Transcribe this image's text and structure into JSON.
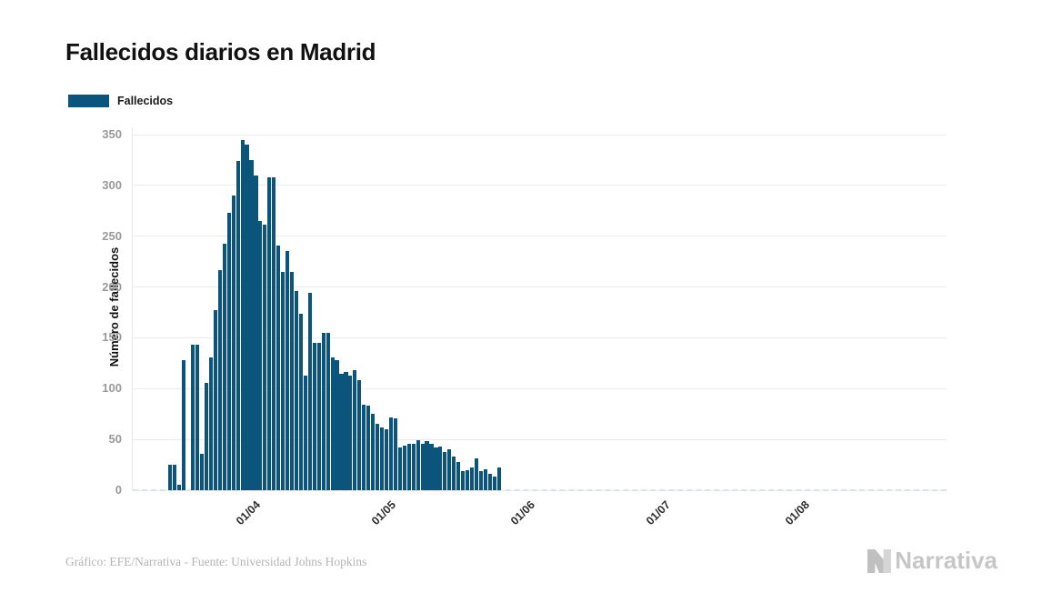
{
  "title": "Fallecidos diarios en Madrid",
  "legend": {
    "label": "Fallecidos",
    "swatch_color": "#0b547b"
  },
  "y_axis": {
    "title": "Número de fallecidos"
  },
  "footer": {
    "credit": "Gráfico: EFE/Narrativa - Fuente: Universidad Johns Hopkins",
    "brand": "Narrativa",
    "brand_icon": "narrativa-n-logo"
  },
  "colors": {
    "bar": "#0b547b",
    "gridline": "#ececec",
    "zero_dash": "#dbe3ea",
    "ytick_text": "#999999",
    "xtick_text": "#2e2e2e",
    "title_text": "#111111",
    "credit_text": "#b5b5b5",
    "brand_text": "#c6c6c6"
  },
  "chart_data": {
    "type": "bar",
    "title": "Fallecidos diarios en Madrid",
    "xlabel": "",
    "ylabel": "Número de fallecidos",
    "series_name": "Fallecidos",
    "ylim": [
      0,
      350
    ],
    "yticks": [
      0,
      50,
      100,
      150,
      200,
      250,
      300,
      350
    ],
    "xticks": [
      "01/04",
      "01/05",
      "01/06",
      "01/07",
      "01/08"
    ],
    "grid": "horizontal-only",
    "legend_position": "top-left",
    "bars_zero_after_last_date": true,
    "dates": [
      "13/03",
      "14/03",
      "15/03",
      "16/03",
      "17/03",
      "18/03",
      "19/03",
      "20/03",
      "21/03",
      "22/03",
      "23/03",
      "24/03",
      "25/03",
      "26/03",
      "27/03",
      "28/03",
      "29/03",
      "30/03",
      "31/03",
      "01/04",
      "02/04",
      "03/04",
      "04/04",
      "05/04",
      "06/04",
      "07/04",
      "08/04",
      "09/04",
      "10/04",
      "11/04",
      "12/04",
      "13/04",
      "14/04",
      "15/04",
      "16/04",
      "17/04",
      "18/04",
      "19/04",
      "20/04",
      "21/04",
      "22/04",
      "23/04",
      "24/04",
      "25/04",
      "26/04",
      "27/04",
      "28/04",
      "29/04",
      "30/04",
      "01/05",
      "02/05",
      "03/05",
      "04/05",
      "05/05",
      "06/05",
      "07/05",
      "08/05",
      "09/05",
      "10/05",
      "11/05",
      "12/05",
      "13/05",
      "14/05",
      "15/05",
      "16/05",
      "17/05",
      "18/05",
      "19/05",
      "20/05",
      "21/05",
      "22/05",
      "23/05",
      "24/05",
      "25/05"
    ],
    "values": [
      25,
      25,
      5,
      128,
      0,
      143,
      143,
      36,
      106,
      131,
      177,
      217,
      243,
      273,
      290,
      324,
      345,
      340,
      325,
      310,
      265,
      261,
      308,
      308,
      241,
      215,
      235,
      215,
      196,
      174,
      113,
      194,
      145,
      145,
      155,
      155,
      131,
      128,
      115,
      116,
      113,
      118,
      108,
      84,
      83,
      75,
      65,
      62,
      60,
      72,
      71,
      42,
      44,
      46,
      46,
      49,
      46,
      48,
      46,
      42,
      43,
      38,
      40,
      33,
      28,
      19,
      20,
      22,
      31,
      19,
      21,
      16,
      13,
      22
    ]
  }
}
